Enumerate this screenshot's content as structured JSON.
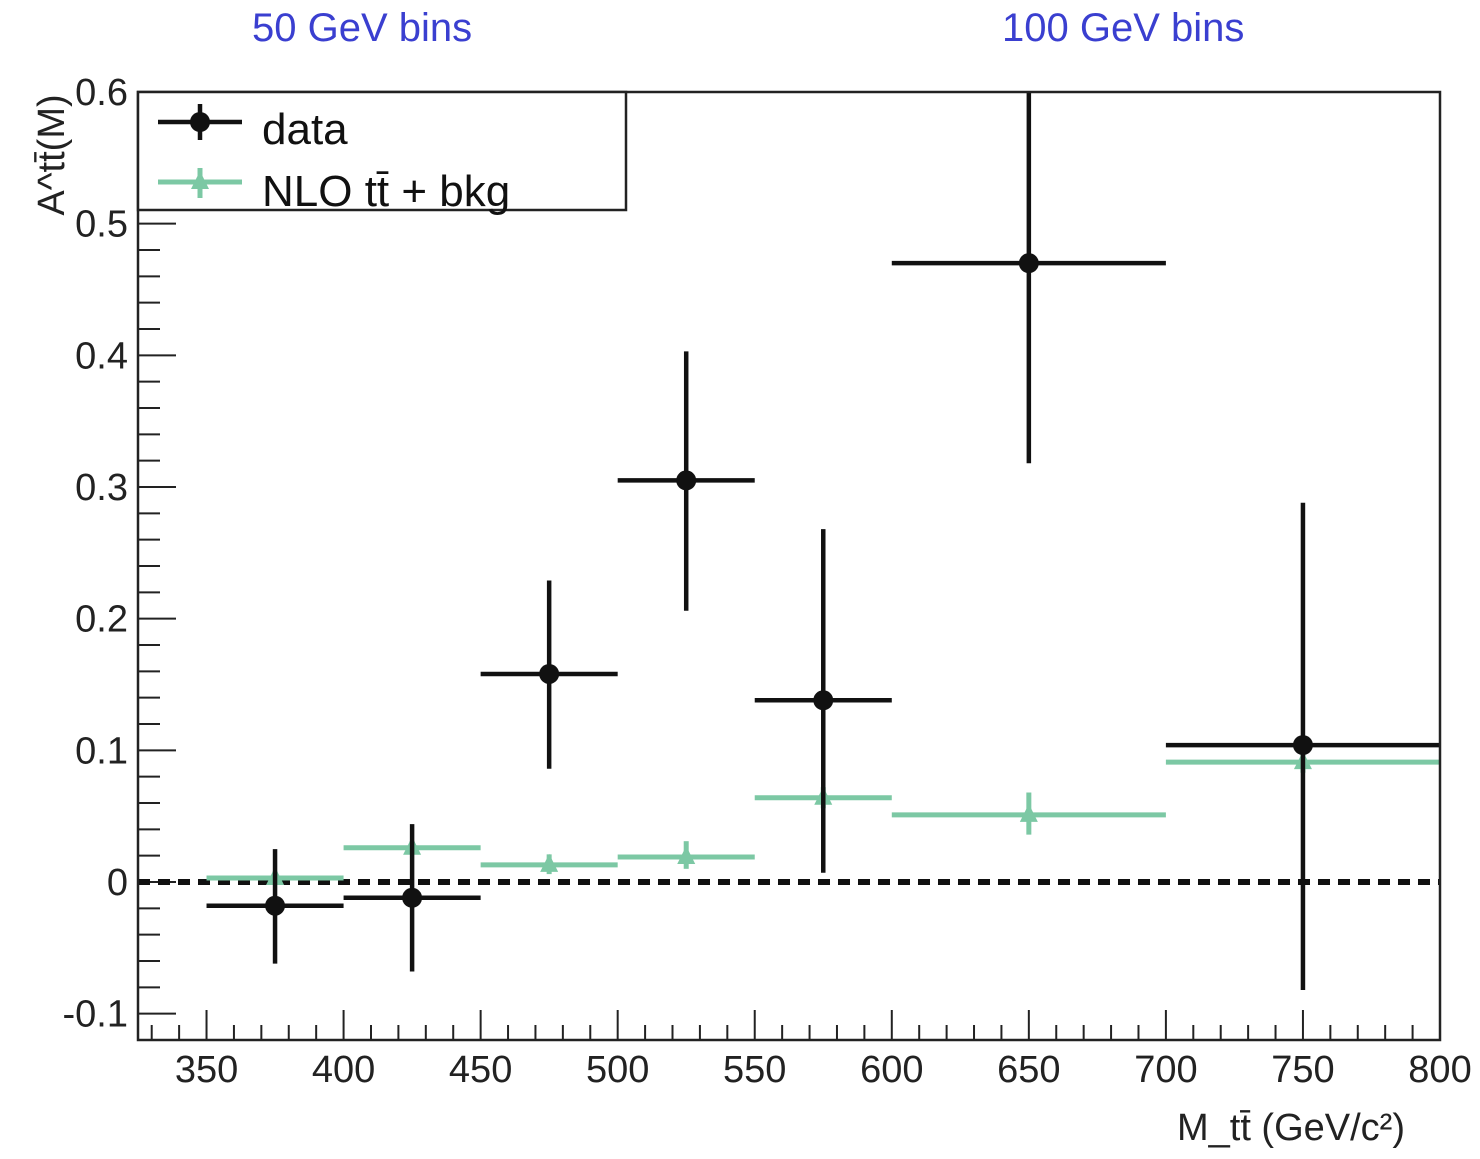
{
  "annotations": {
    "left": "50 GeV bins",
    "right": "100 GeV bins"
  },
  "colors": {
    "data": "#111111",
    "nlo": "#7cc8a4",
    "annotation": "#3a3fd0"
  },
  "chart_data": {
    "type": "scatter",
    "xlabel": "M_tt̄ (GeV/c²)",
    "ylabel": "A^tt̄(M)",
    "xlim": [
      325,
      800
    ],
    "ylim": [
      -0.12,
      0.6
    ],
    "x_ticks": [
      "350",
      "400",
      "450",
      "500",
      "550",
      "600",
      "650",
      "700",
      "750",
      "800"
    ],
    "y_ticks": [
      "-0.1",
      "0",
      "0.1",
      "0.2",
      "0.3",
      "0.4",
      "0.5",
      "0.6"
    ],
    "legend": {
      "position": "top-left",
      "entries": [
        "data",
        "NLO tt̄ + bkg"
      ]
    },
    "reference_line": {
      "y": 0,
      "style": "dashed"
    },
    "series": [
      {
        "name": "data",
        "points": [
          {
            "x": 375,
            "xerr": 25,
            "y": -0.018,
            "ylow": -0.062,
            "yhigh": 0.025
          },
          {
            "x": 425,
            "xerr": 25,
            "y": -0.012,
            "ylow": -0.068,
            "yhigh": 0.044
          },
          {
            "x": 475,
            "xerr": 25,
            "y": 0.158,
            "ylow": 0.086,
            "yhigh": 0.229
          },
          {
            "x": 525,
            "xerr": 25,
            "y": 0.305,
            "ylow": 0.206,
            "yhigh": 0.403
          },
          {
            "x": 575,
            "xerr": 25,
            "y": 0.138,
            "ylow": 0.007,
            "yhigh": 0.268
          },
          {
            "x": 650,
            "xerr": 50,
            "y": 0.47,
            "ylow": 0.318,
            "yhigh": 0.6
          },
          {
            "x": 750,
            "xerr": 50,
            "y": 0.104,
            "ylow": -0.082,
            "yhigh": 0.288
          }
        ]
      },
      {
        "name": "NLO tt̄ + bkg",
        "points": [
          {
            "x": 375,
            "xerr": 25,
            "y": 0.003,
            "ylow": -0.002,
            "yhigh": 0.008
          },
          {
            "x": 425,
            "xerr": 25,
            "y": 0.026,
            "ylow": 0.021,
            "yhigh": 0.031
          },
          {
            "x": 475,
            "xerr": 25,
            "y": 0.013,
            "ylow": 0.006,
            "yhigh": 0.021
          },
          {
            "x": 525,
            "xerr": 25,
            "y": 0.019,
            "ylow": 0.01,
            "yhigh": 0.031
          },
          {
            "x": 575,
            "xerr": 25,
            "y": 0.064,
            "ylow": 0.056,
            "yhigh": 0.072
          },
          {
            "x": 650,
            "xerr": 50,
            "y": 0.051,
            "ylow": 0.036,
            "yhigh": 0.068
          },
          {
            "x": 750,
            "xerr": 50,
            "y": 0.091,
            "ylow": 0.083,
            "yhigh": 0.099
          }
        ]
      }
    ]
  }
}
